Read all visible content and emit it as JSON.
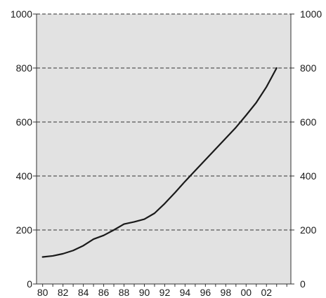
{
  "chart_data": {
    "type": "line",
    "title": "",
    "xlabel": "",
    "ylabel": "",
    "x": [
      1980,
      1981,
      1982,
      1983,
      1984,
      1985,
      1986,
      1987,
      1988,
      1989,
      1990,
      1991,
      1992,
      1993,
      1994,
      1995,
      1996,
      1997,
      1998,
      1999,
      2000,
      2001,
      2002,
      2003
    ],
    "series": [
      {
        "values": [
          100,
          104,
          112,
          124,
          142,
          166,
          180,
          200,
          222,
          230,
          240,
          262,
          298,
          338,
          380,
          420,
          460,
          500,
          540,
          580,
          625,
          672,
          730,
          800
        ],
        "color": "#1a1a1a"
      }
    ],
    "xlim": [
      1979.4,
      2004.4
    ],
    "ylim": [
      0,
      1000
    ],
    "x_ticks": [
      {
        "value": 1980,
        "label": "80"
      },
      {
        "value": 1982,
        "label": "82"
      },
      {
        "value": 1984,
        "label": "84"
      },
      {
        "value": 1986,
        "label": "86"
      },
      {
        "value": 1988,
        "label": "88"
      },
      {
        "value": 1990,
        "label": "90"
      },
      {
        "value": 1992,
        "label": "92"
      },
      {
        "value": 1994,
        "label": "94"
      },
      {
        "value": 1996,
        "label": "96"
      },
      {
        "value": 1998,
        "label": "98"
      },
      {
        "value": 2000,
        "label": "00"
      },
      {
        "value": 2002,
        "label": "02"
      }
    ],
    "y_ticks": [
      {
        "value": 0,
        "label": "0"
      },
      {
        "value": 200,
        "label": "200"
      },
      {
        "value": 400,
        "label": "400"
      },
      {
        "value": 600,
        "label": "600"
      },
      {
        "value": 800,
        "label": "800"
      },
      {
        "value": 1000,
        "label": "1000"
      }
    ],
    "y_axis_sides": [
      "left",
      "right"
    ],
    "grid": {
      "horizontal": true,
      "style": "dashed",
      "color": "#555555"
    },
    "legend": "none",
    "colors": {
      "plot_background": "#e2e2e2",
      "line": "#1a1a1a",
      "axis": "#333333"
    }
  }
}
